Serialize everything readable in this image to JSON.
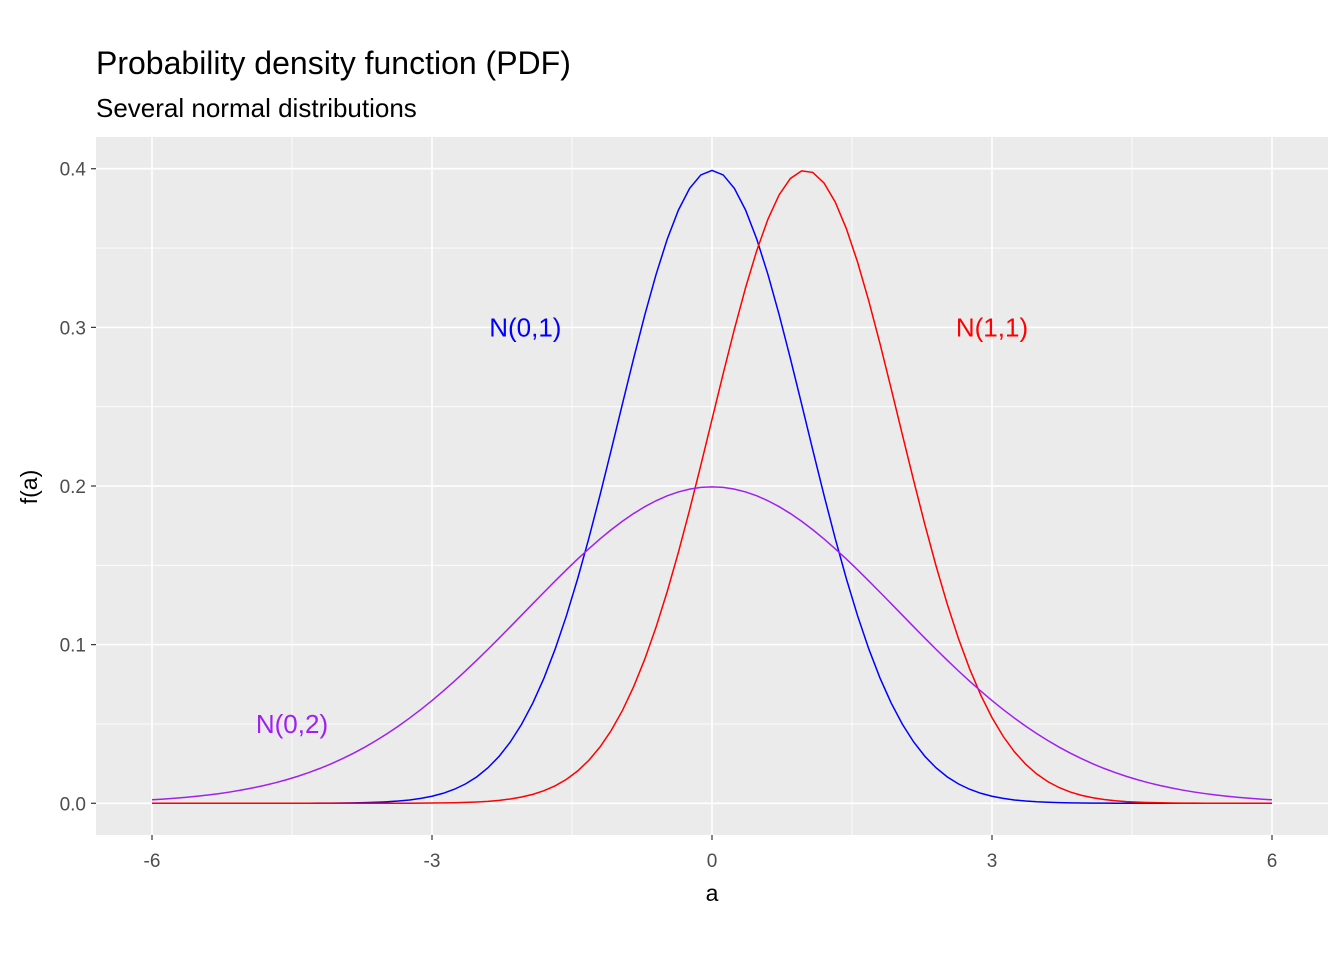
{
  "chart_data": {
    "type": "line",
    "title": "Probability density function (PDF)",
    "subtitle": "Several normal distributions",
    "xlabel": "a",
    "ylabel": "f(a)",
    "xlim": [
      -6.6,
      6.6
    ],
    "ylim": [
      -0.02,
      0.42
    ],
    "x_ticks": [
      -6,
      -3,
      0,
      3,
      6
    ],
    "x_tick_labels": [
      "-6",
      "-3",
      "0",
      "3",
      "6"
    ],
    "y_ticks": [
      0.0,
      0.1,
      0.2,
      0.3,
      0.4
    ],
    "y_tick_labels": [
      "0.0",
      "0.1",
      "0.2",
      "0.3",
      "0.4"
    ],
    "grid": true,
    "legend": "none",
    "panel_background": "#EBEBEB",
    "x_range": [
      -6,
      6
    ],
    "series": [
      {
        "name": "N(0,1)",
        "distribution": "normal",
        "mean": 0,
        "sd": 1,
        "color": "#0000FF"
      },
      {
        "name": "N(1,1)",
        "distribution": "normal",
        "mean": 1,
        "sd": 1,
        "color": "#FF0000"
      },
      {
        "name": "N(0,2)",
        "distribution": "normal",
        "mean": 0,
        "sd": 2,
        "color": "#A020F0"
      }
    ],
    "annotations": [
      {
        "text": "N(0,1)",
        "x": -2,
        "y": 0.3,
        "color": "#0000FF"
      },
      {
        "text": "N(1,1)",
        "x": 3,
        "y": 0.3,
        "color": "#FF0000"
      },
      {
        "text": "N(0,2)",
        "x": -4.5,
        "y": 0.05,
        "color": "#A020F0"
      }
    ]
  }
}
